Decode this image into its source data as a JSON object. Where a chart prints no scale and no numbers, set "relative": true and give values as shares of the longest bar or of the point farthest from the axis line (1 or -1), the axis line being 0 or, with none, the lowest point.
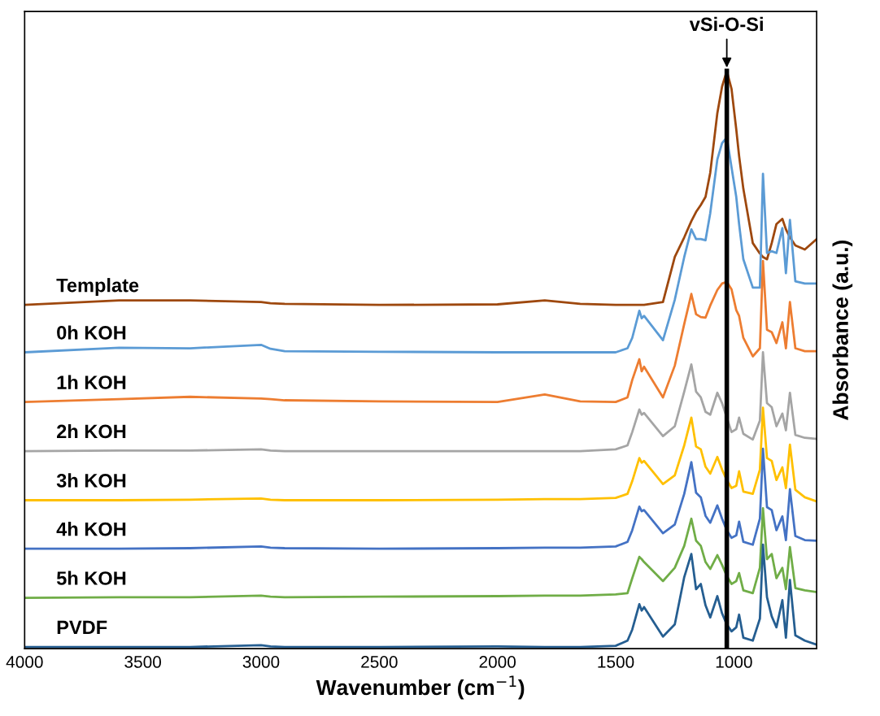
{
  "chart_data": {
    "type": "line",
    "relative": true,
    "xlabel": "Wavenumber (cm$^{−1}$)",
    "ylabel": "Absorbance (a.u.)",
    "x": [
      4000,
      3600,
      3300,
      3000,
      2960,
      2900,
      2500,
      2000,
      1800,
      1650,
      1500,
      1450,
      1430,
      1400,
      1390,
      1380,
      1300,
      1250,
      1210,
      1180,
      1160,
      1140,
      1120,
      1100,
      1070,
      1050,
      1030,
      1010,
      990,
      978,
      960,
      920,
      890,
      877,
      860,
      840,
      820,
      795,
      780,
      763,
      740,
      700,
      650
    ],
    "xlim": [
      4000,
      650
    ],
    "xticks": [
      4000,
      3500,
      3000,
      2500,
      2000,
      1500,
      1000
    ],
    "grid": false,
    "legend": false,
    "series": [
      {
        "name": "Template",
        "color": "#9e480e",
        "values": [
          0.595,
          0.603,
          0.603,
          0.6,
          0.598,
          0.597,
          0.595,
          0.596,
          0.603,
          0.597,
          0.595,
          0.595,
          0.595,
          0.595,
          0.595,
          0.595,
          0.6,
          0.678,
          0.712,
          0.74,
          0.756,
          0.768,
          0.782,
          0.824,
          0.927,
          0.973,
          1.0,
          0.969,
          0.899,
          0.853,
          0.796,
          0.702,
          0.684,
          0.678,
          0.674,
          0.702,
          0.735,
          0.744,
          0.726,
          0.712,
          0.698,
          0.691,
          0.709
        ]
      },
      {
        "name": "0h KOH",
        "color": "#5b9bd5",
        "values": [
          0.513,
          0.521,
          0.52,
          0.526,
          0.519,
          0.515,
          0.514,
          0.513,
          0.513,
          0.513,
          0.513,
          0.52,
          0.538,
          0.585,
          0.572,
          0.576,
          0.534,
          0.604,
          0.678,
          0.726,
          0.709,
          0.709,
          0.707,
          0.754,
          0.847,
          0.875,
          0.885,
          0.833,
          0.782,
          0.735,
          0.674,
          0.625,
          0.625,
          0.822,
          0.685,
          0.688,
          0.685,
          0.728,
          0.65,
          0.742,
          0.636,
          0.632,
          0.632
        ]
      },
      {
        "name": "1h KOH",
        "color": "#ed7d31",
        "values": [
          0.427,
          0.432,
          0.436,
          0.433,
          0.432,
          0.43,
          0.428,
          0.427,
          0.44,
          0.428,
          0.427,
          0.435,
          0.465,
          0.501,
          0.48,
          0.488,
          0.435,
          0.49,
          0.562,
          0.614,
          0.579,
          0.574,
          0.573,
          0.594,
          0.621,
          0.632,
          0.635,
          0.622,
          0.586,
          0.576,
          0.538,
          0.506,
          0.52,
          0.671,
          0.552,
          0.548,
          0.529,
          0.565,
          0.52,
          0.6,
          0.52,
          0.515,
          0.515
        ]
      },
      {
        "name": "2h KOH",
        "color": "#a5a5a5",
        "values": [
          0.342,
          0.343,
          0.343,
          0.345,
          0.343,
          0.342,
          0.342,
          0.342,
          0.342,
          0.342,
          0.345,
          0.352,
          0.375,
          0.414,
          0.405,
          0.408,
          0.368,
          0.385,
          0.445,
          0.492,
          0.445,
          0.435,
          0.41,
          0.405,
          0.443,
          0.425,
          0.4,
          0.375,
          0.38,
          0.4,
          0.372,
          0.362,
          0.395,
          0.513,
          0.425,
          0.418,
          0.385,
          0.407,
          0.378,
          0.443,
          0.37,
          0.365,
          0.363
        ]
      },
      {
        "name": "3h KOH",
        "color": "#ffc000",
        "values": [
          0.257,
          0.257,
          0.258,
          0.26,
          0.258,
          0.257,
          0.257,
          0.258,
          0.259,
          0.259,
          0.261,
          0.268,
          0.29,
          0.33,
          0.322,
          0.325,
          0.285,
          0.3,
          0.352,
          0.4,
          0.35,
          0.345,
          0.315,
          0.303,
          0.332,
          0.31,
          0.292,
          0.278,
          0.282,
          0.307,
          0.272,
          0.268,
          0.31,
          0.417,
          0.33,
          0.325,
          0.292,
          0.314,
          0.278,
          0.353,
          0.275,
          0.262,
          0.255
        ]
      },
      {
        "name": "4h KOH",
        "color": "#4472c4",
        "values": [
          0.173,
          0.173,
          0.174,
          0.177,
          0.175,
          0.174,
          0.173,
          0.174,
          0.175,
          0.175,
          0.177,
          0.185,
          0.205,
          0.246,
          0.238,
          0.24,
          0.2,
          0.215,
          0.268,
          0.323,
          0.27,
          0.262,
          0.23,
          0.218,
          0.248,
          0.225,
          0.205,
          0.192,
          0.196,
          0.22,
          0.185,
          0.18,
          0.225,
          0.346,
          0.245,
          0.24,
          0.205,
          0.229,
          0.188,
          0.276,
          0.195,
          0.188,
          0.187
        ]
      },
      {
        "name": "5h KOH",
        "color": "#70ad47",
        "values": [
          0.088,
          0.089,
          0.089,
          0.092,
          0.09,
          0.089,
          0.09,
          0.091,
          0.092,
          0.092,
          0.094,
          0.096,
          0.122,
          0.159,
          0.155,
          0.15,
          0.117,
          0.14,
          0.178,
          0.225,
          0.187,
          0.178,
          0.15,
          0.138,
          0.162,
          0.145,
          0.126,
          0.112,
          0.117,
          0.131,
          0.101,
          0.096,
          0.14,
          0.243,
          0.155,
          0.164,
          0.122,
          0.14,
          0.103,
          0.176,
          0.105,
          0.101,
          0.098
        ]
      },
      {
        "name": "PVDF",
        "color": "#255e91",
        "values": [
          0.003,
          0.003,
          0.003,
          0.006,
          0.004,
          0.003,
          0.003,
          0.004,
          0.003,
          0.003,
          0.005,
          0.014,
          0.033,
          0.077,
          0.066,
          0.072,
          0.021,
          0.042,
          0.124,
          0.164,
          0.103,
          0.112,
          0.075,
          0.054,
          0.091,
          0.061,
          0.042,
          0.03,
          0.037,
          0.059,
          0.019,
          0.014,
          0.052,
          0.18,
          0.089,
          0.056,
          0.037,
          0.084,
          0.019,
          0.119,
          0.023,
          0.014,
          0.007
        ]
      }
    ],
    "ref_lines": [
      {
        "axis": "x",
        "value": 1030,
        "color": "#000000",
        "line_style": "solid"
      }
    ],
    "annotations": [
      {
        "text": "vSi-O-Si",
        "x": 1030,
        "y": 1.0
      }
    ]
  }
}
